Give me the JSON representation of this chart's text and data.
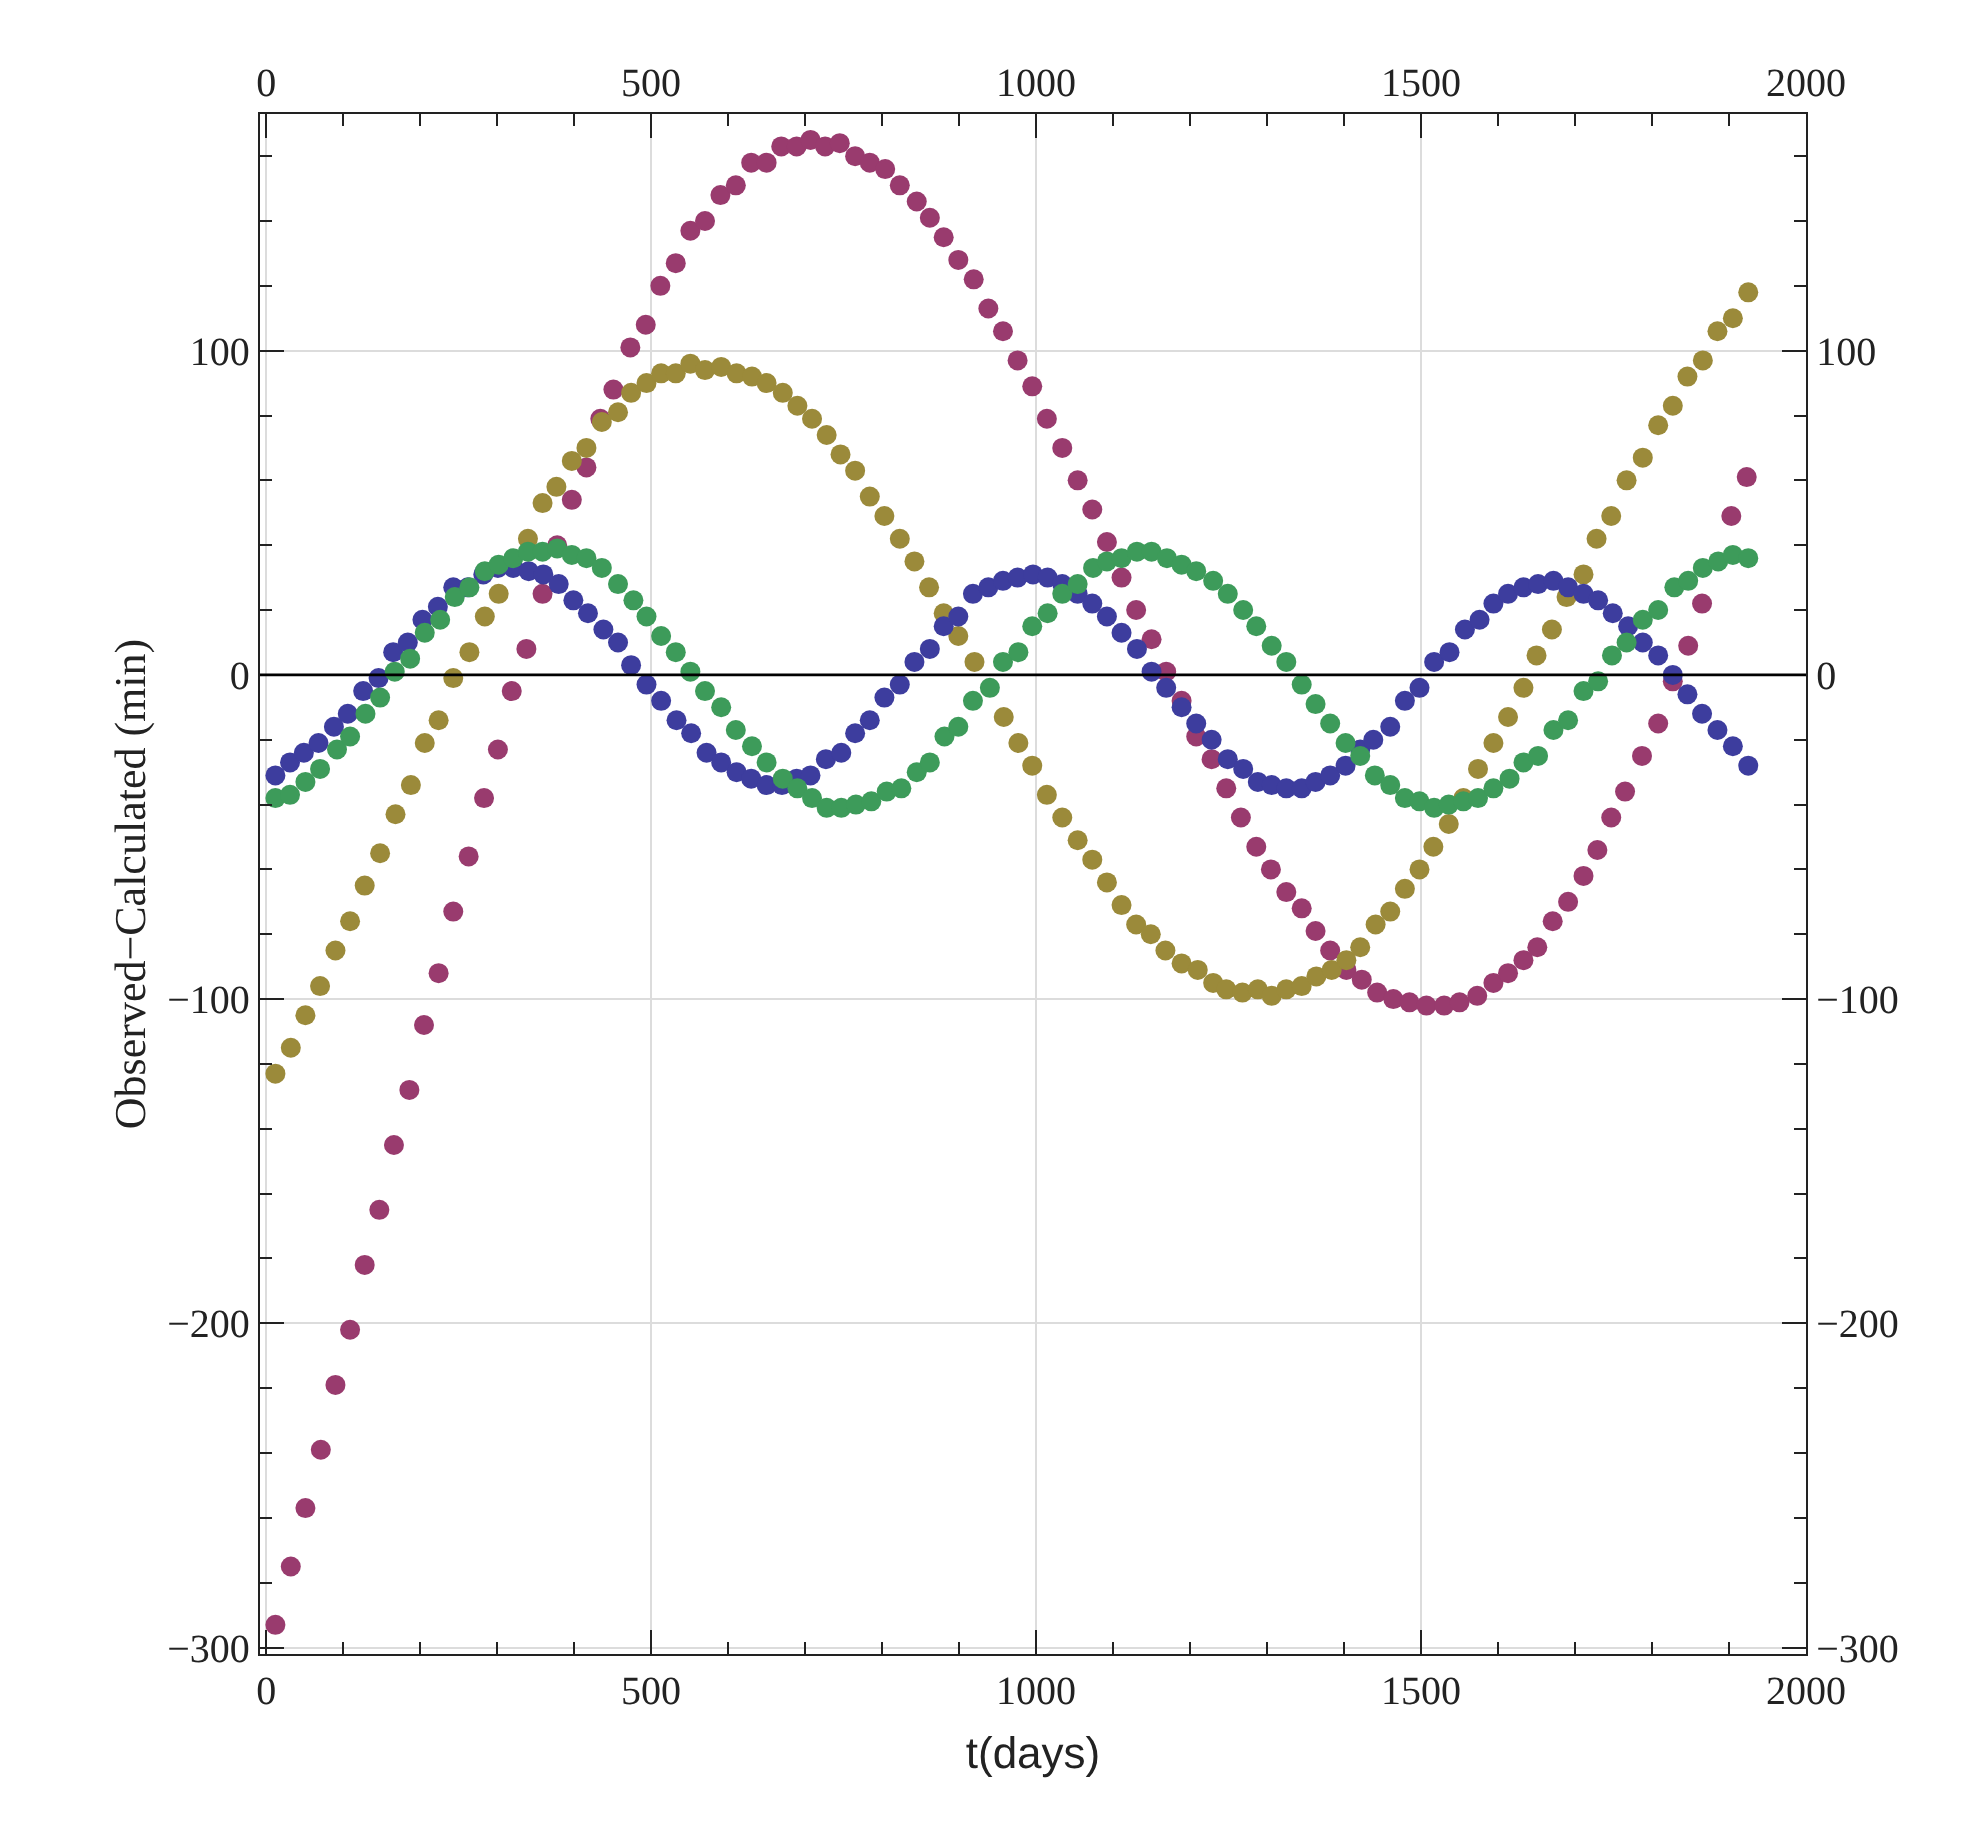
{
  "chart_data": {
    "type": "scatter",
    "xlabel": "t(days)",
    "ylabel": "Observed−Calculated (min)",
    "marker": "circle",
    "grid": true,
    "xlim": [
      -8,
      2000
    ],
    "x2lim": [
      -8,
      2000
    ],
    "ylim": [
      -302,
      173
    ],
    "y2lim": [
      -302,
      173
    ],
    "xticks": [
      0,
      {
        "value": 100,
        "label": null
      },
      {
        "value": 200,
        "label": null
      },
      {
        "value": 300,
        "label": null
      },
      {
        "value": 400,
        "label": null
      },
      500,
      {
        "value": 600,
        "label": null
      },
      {
        "value": 700,
        "label": null
      },
      {
        "value": 800,
        "label": null
      },
      {
        "value": 900,
        "label": null
      },
      1000,
      {
        "value": 1100,
        "label": null
      },
      {
        "value": 1200,
        "label": null
      },
      {
        "value": 1300,
        "label": null
      },
      {
        "value": 1400,
        "label": null
      },
      1500,
      {
        "value": 1600,
        "label": null
      },
      {
        "value": 1700,
        "label": null
      },
      {
        "value": 1800,
        "label": null
      },
      {
        "value": 1900,
        "label": null
      },
      2000
    ],
    "x2ticks": [
      0,
      {
        "value": 100,
        "label": null
      },
      {
        "value": 200,
        "label": null
      },
      {
        "value": 300,
        "label": null
      },
      {
        "value": 400,
        "label": null
      },
      500,
      {
        "value": 600,
        "label": null
      },
      {
        "value": 700,
        "label": null
      },
      {
        "value": 800,
        "label": null
      },
      {
        "value": 900,
        "label": null
      },
      1000,
      {
        "value": 1100,
        "label": null
      },
      {
        "value": 1200,
        "label": null
      },
      {
        "value": 1300,
        "label": null
      },
      {
        "value": 1400,
        "label": null
      },
      1500,
      {
        "value": 1600,
        "label": null
      },
      {
        "value": 1700,
        "label": null
      },
      {
        "value": 1800,
        "label": null
      },
      {
        "value": 1900,
        "label": null
      },
      2000
    ],
    "yticks": [
      {
        "value": -300,
        "label": "−300"
      },
      {
        "value": -280,
        "label": null
      },
      {
        "value": -260,
        "label": null
      },
      {
        "value": -240,
        "label": null
      },
      {
        "value": -220,
        "label": null
      },
      {
        "value": -200,
        "label": "−200"
      },
      {
        "value": -180,
        "label": null
      },
      {
        "value": -160,
        "label": null
      },
      {
        "value": -140,
        "label": null
      },
      {
        "value": -120,
        "label": null
      },
      {
        "value": -100,
        "label": "−100"
      },
      {
        "value": -80,
        "label": null
      },
      {
        "value": -60,
        "label": null
      },
      {
        "value": -40,
        "label": null
      },
      {
        "value": -20,
        "label": null
      },
      0,
      {
        "value": 20,
        "label": null
      },
      {
        "value": 40,
        "label": null
      },
      {
        "value": 60,
        "label": null
      },
      {
        "value": 80,
        "label": null
      },
      100,
      {
        "value": 120,
        "label": null
      },
      {
        "value": 140,
        "label": null
      },
      {
        "value": 160,
        "label": null
      }
    ],
    "y2ticks": [
      {
        "value": -300,
        "label": "−300"
      },
      {
        "value": -280,
        "label": null
      },
      {
        "value": -260,
        "label": null
      },
      {
        "value": -240,
        "label": null
      },
      {
        "value": -220,
        "label": null
      },
      {
        "value": -200,
        "label": "−200"
      },
      {
        "value": -180,
        "label": null
      },
      {
        "value": -160,
        "label": null
      },
      {
        "value": -140,
        "label": null
      },
      {
        "value": -120,
        "label": null
      },
      {
        "value": -100,
        "label": "−100"
      },
      {
        "value": -80,
        "label": null
      },
      {
        "value": -60,
        "label": null
      },
      {
        "value": -40,
        "label": null
      },
      {
        "value": -20,
        "label": null
      },
      0,
      {
        "value": 20,
        "label": null
      },
      {
        "value": 40,
        "label": null
      },
      {
        "value": 60,
        "label": null
      },
      {
        "value": 80,
        "label": null
      },
      100,
      {
        "value": 120,
        "label": null
      },
      {
        "value": 140,
        "label": null
      },
      {
        "value": 160,
        "label": null
      }
    ],
    "ref_lines": [
      {
        "axis": "y",
        "value": 0,
        "color": "#000000"
      }
    ],
    "series": [
      {
        "color": "#993b6e",
        "x": [
          12,
          32,
          51,
          71,
          90,
          109,
          128,
          147,
          166,
          186,
          205,
          224,
          243,
          263,
          283,
          301,
          319,
          338,
          359,
          378,
          397,
          416,
          434,
          451,
          473,
          493,
          512,
          532,
          551,
          570,
          590,
          610,
          630,
          650,
          669,
          689,
          707,
          726,
          745,
          765,
          784,
          804,
          823,
          845,
          862,
          880,
          899,
          919,
          938,
          957,
          976,
          995,
          1014,
          1034,
          1054,
          1073,
          1092,
          1111,
          1130,
          1150,
          1169,
          1189,
          1208,
          1228,
          1247,
          1266,
          1286,
          1305,
          1325,
          1345,
          1363,
          1382,
          1403,
          1423,
          1443,
          1464,
          1485,
          1507,
          1530,
          1550,
          1573,
          1594,
          1613,
          1633,
          1651,
          1671,
          1691,
          1711,
          1729,
          1747,
          1765,
          1787,
          1808,
          1827,
          1847,
          1865,
          1903,
          1923
        ],
        "values": [
          -293,
          -275,
          -257,
          -239,
          -219,
          -202,
          -182,
          -165,
          -145,
          -128,
          -108,
          -92,
          -73,
          -56,
          -38,
          -23,
          -5,
          8,
          25,
          40,
          54,
          64,
          79,
          88,
          101,
          108,
          120,
          127,
          137,
          140,
          148,
          151,
          158,
          158,
          163,
          163,
          165,
          163,
          164,
          160,
          158,
          156,
          151,
          146,
          141,
          135,
          128,
          122,
          113,
          106,
          97,
          89,
          79,
          70,
          60,
          51,
          41,
          30,
          20,
          11,
          1,
          -8,
          -19,
          -26,
          -35,
          -44,
          -53,
          -60,
          -67,
          -72,
          -79,
          -85,
          -91,
          -94,
          -98,
          -100,
          -101,
          -102,
          -102,
          -101,
          -99,
          -95,
          -92,
          -88,
          -84,
          -76,
          -70,
          -62,
          -54,
          -44,
          -36,
          -25,
          -15,
          -2,
          9,
          22,
          49,
          61
        ]
      },
      {
        "color": "#9b8a3a",
        "x": [
          12,
          32,
          51,
          70,
          90,
          109,
          128,
          148,
          168,
          188,
          206,
          224,
          243,
          264,
          284,
          302,
          340,
          359,
          377,
          397,
          416,
          436,
          457,
          474,
          494,
          513,
          532,
          551,
          570,
          591,
          611,
          631,
          650,
          671,
          690,
          709,
          728,
          746,
          765,
          784,
          803,
          823,
          842,
          861,
          880,
          899,
          920,
          958,
          977,
          995,
          1014,
          1034,
          1054,
          1073,
          1092,
          1111,
          1130,
          1149,
          1168,
          1189,
          1210,
          1230,
          1247,
          1268,
          1288,
          1306,
          1325,
          1345,
          1364,
          1384,
          1403,
          1421,
          1441,
          1460,
          1479,
          1498,
          1516,
          1536,
          1555,
          1574,
          1594,
          1613,
          1633,
          1650,
          1670,
          1689,
          1711,
          1728,
          1747,
          1767,
          1788,
          1808,
          1827,
          1846,
          1866,
          1885,
          1905,
          1925
        ],
        "values": [
          -123,
          -115,
          -105,
          -96,
          -85,
          -76,
          -65,
          -55,
          -43,
          -34,
          -21,
          -14,
          -1,
          7,
          18,
          25,
          42,
          53,
          58,
          66,
          70,
          78,
          81,
          87,
          90,
          93,
          93,
          96,
          94,
          95,
          93,
          92,
          90,
          87,
          83,
          79,
          74,
          68,
          63,
          55,
          49,
          42,
          35,
          27,
          19,
          12,
          4,
          -13,
          -21,
          -28,
          -37,
          -44,
          -51,
          -57,
          -64,
          -71,
          -77,
          -80,
          -85,
          -89,
          -91,
          -95,
          -97,
          -98,
          -97,
          -99,
          -97,
          -96,
          -93,
          -91,
          -88,
          -84,
          -77,
          -73,
          -66,
          -60,
          -53,
          -46,
          -38,
          -29,
          -21,
          -13,
          -4,
          6,
          14,
          24,
          31,
          42,
          49,
          60,
          67,
          77,
          83,
          92,
          97,
          106,
          110,
          118
        ]
      },
      {
        "color": "#3d3d9e",
        "x": [
          12,
          31,
          49,
          68,
          88,
          106,
          126,
          146,
          165,
          184,
          203,
          223,
          243,
          262,
          282,
          301,
          321,
          341,
          360,
          380,
          399,
          418,
          438,
          457,
          474,
          494,
          513,
          533,
          552,
          572,
          591,
          611,
          630,
          650,
          670,
          689,
          707,
          727,
          747,
          765,
          784,
          803,
          823,
          842,
          862,
          880,
          899,
          918,
          938,
          957,
          976,
          996,
          1015,
          1034,
          1054,
          1073,
          1092,
          1111,
          1131,
          1150,
          1169,
          1189,
          1208,
          1228,
          1249,
          1269,
          1288,
          1306,
          1325,
          1345,
          1363,
          1382,
          1402,
          1421,
          1438,
          1460,
          1479,
          1498,
          1517,
          1537,
          1557,
          1576,
          1594,
          1613,
          1633,
          1652,
          1672,
          1691,
          1711,
          1730,
          1749,
          1769,
          1788,
          1808,
          1827,
          1846,
          1865,
          1885,
          1905,
          1925
        ],
        "values": [
          -31,
          -27,
          -24,
          -21,
          -16,
          -12,
          -5,
          -1,
          7,
          10,
          17,
          21,
          27,
          27,
          31,
          33,
          33,
          32,
          31,
          28,
          23,
          19,
          14,
          10,
          3,
          -3,
          -8,
          -14,
          -18,
          -24,
          -27,
          -30,
          -32,
          -34,
          -34,
          -32,
          -31,
          -26,
          -24,
          -18,
          -14,
          -7,
          -3,
          4,
          8,
          15,
          18,
          25,
          27,
          29,
          30,
          31,
          30,
          28,
          25,
          22,
          18,
          13,
          8,
          1,
          -4,
          -10,
          -15,
          -20,
          -26,
          -29,
          -33,
          -34,
          -35,
          -35,
          -33,
          -31,
          -28,
          -23,
          -20,
          -16,
          -8,
          -4,
          4,
          7,
          14,
          17,
          22,
          25,
          27,
          28,
          29,
          27,
          25,
          23,
          19,
          15,
          10,
          6,
          0,
          -6,
          -12,
          -17,
          -22,
          -28
        ]
      },
      {
        "color": "#3d9b5a",
        "x": [
          12,
          31,
          51,
          70,
          92,
          109,
          129,
          148,
          167,
          187,
          206,
          226,
          245,
          264,
          284,
          302,
          321,
          340,
          359,
          378,
          397,
          416,
          436,
          457,
          477,
          494,
          513,
          532,
          551,
          570,
          591,
          610,
          631,
          650,
          671,
          690,
          709,
          728,
          747,
          766,
          786,
          806,
          825,
          845,
          862,
          881,
          899,
          918,
          940,
          957,
          977,
          995,
          1015,
          1034,
          1054,
          1074,
          1092,
          1111,
          1131,
          1150,
          1170,
          1189,
          1208,
          1230,
          1249,
          1269,
          1286,
          1306,
          1325,
          1345,
          1363,
          1382,
          1402,
          1421,
          1440,
          1460,
          1479,
          1498,
          1517,
          1536,
          1555,
          1574,
          1594,
          1615,
          1633,
          1652,
          1672,
          1691,
          1711,
          1730,
          1748,
          1767,
          1788,
          1808,
          1829,
          1847,
          1866,
          1886,
          1905,
          1925
        ],
        "values": [
          -38,
          -37,
          -33,
          -29,
          -23,
          -19,
          -12,
          -7,
          1,
          5,
          13,
          17,
          24,
          27,
          32,
          34,
          36,
          38,
          38,
          39,
          37,
          36,
          33,
          28,
          23,
          18,
          12,
          7,
          1,
          -5,
          -10,
          -17,
          -22,
          -27,
          -32,
          -35,
          -38,
          -41,
          -41,
          -40,
          -39,
          -36,
          -35,
          -30,
          -27,
          -19,
          -16,
          -8,
          -4,
          4,
          7,
          15,
          19,
          25,
          28,
          33,
          35,
          36,
          38,
          38,
          36,
          34,
          32,
          29,
          25,
          20,
          15,
          9,
          4,
          -3,
          -9,
          -15,
          -21,
          -25,
          -31,
          -34,
          -38,
          -39,
          -41,
          -40,
          -39,
          -38,
          -35,
          -32,
          -27,
          -25,
          -17,
          -14,
          -5,
          -2,
          6,
          10,
          17,
          20,
          27,
          29,
          33,
          35,
          37,
          36
        ]
      }
    ]
  }
}
